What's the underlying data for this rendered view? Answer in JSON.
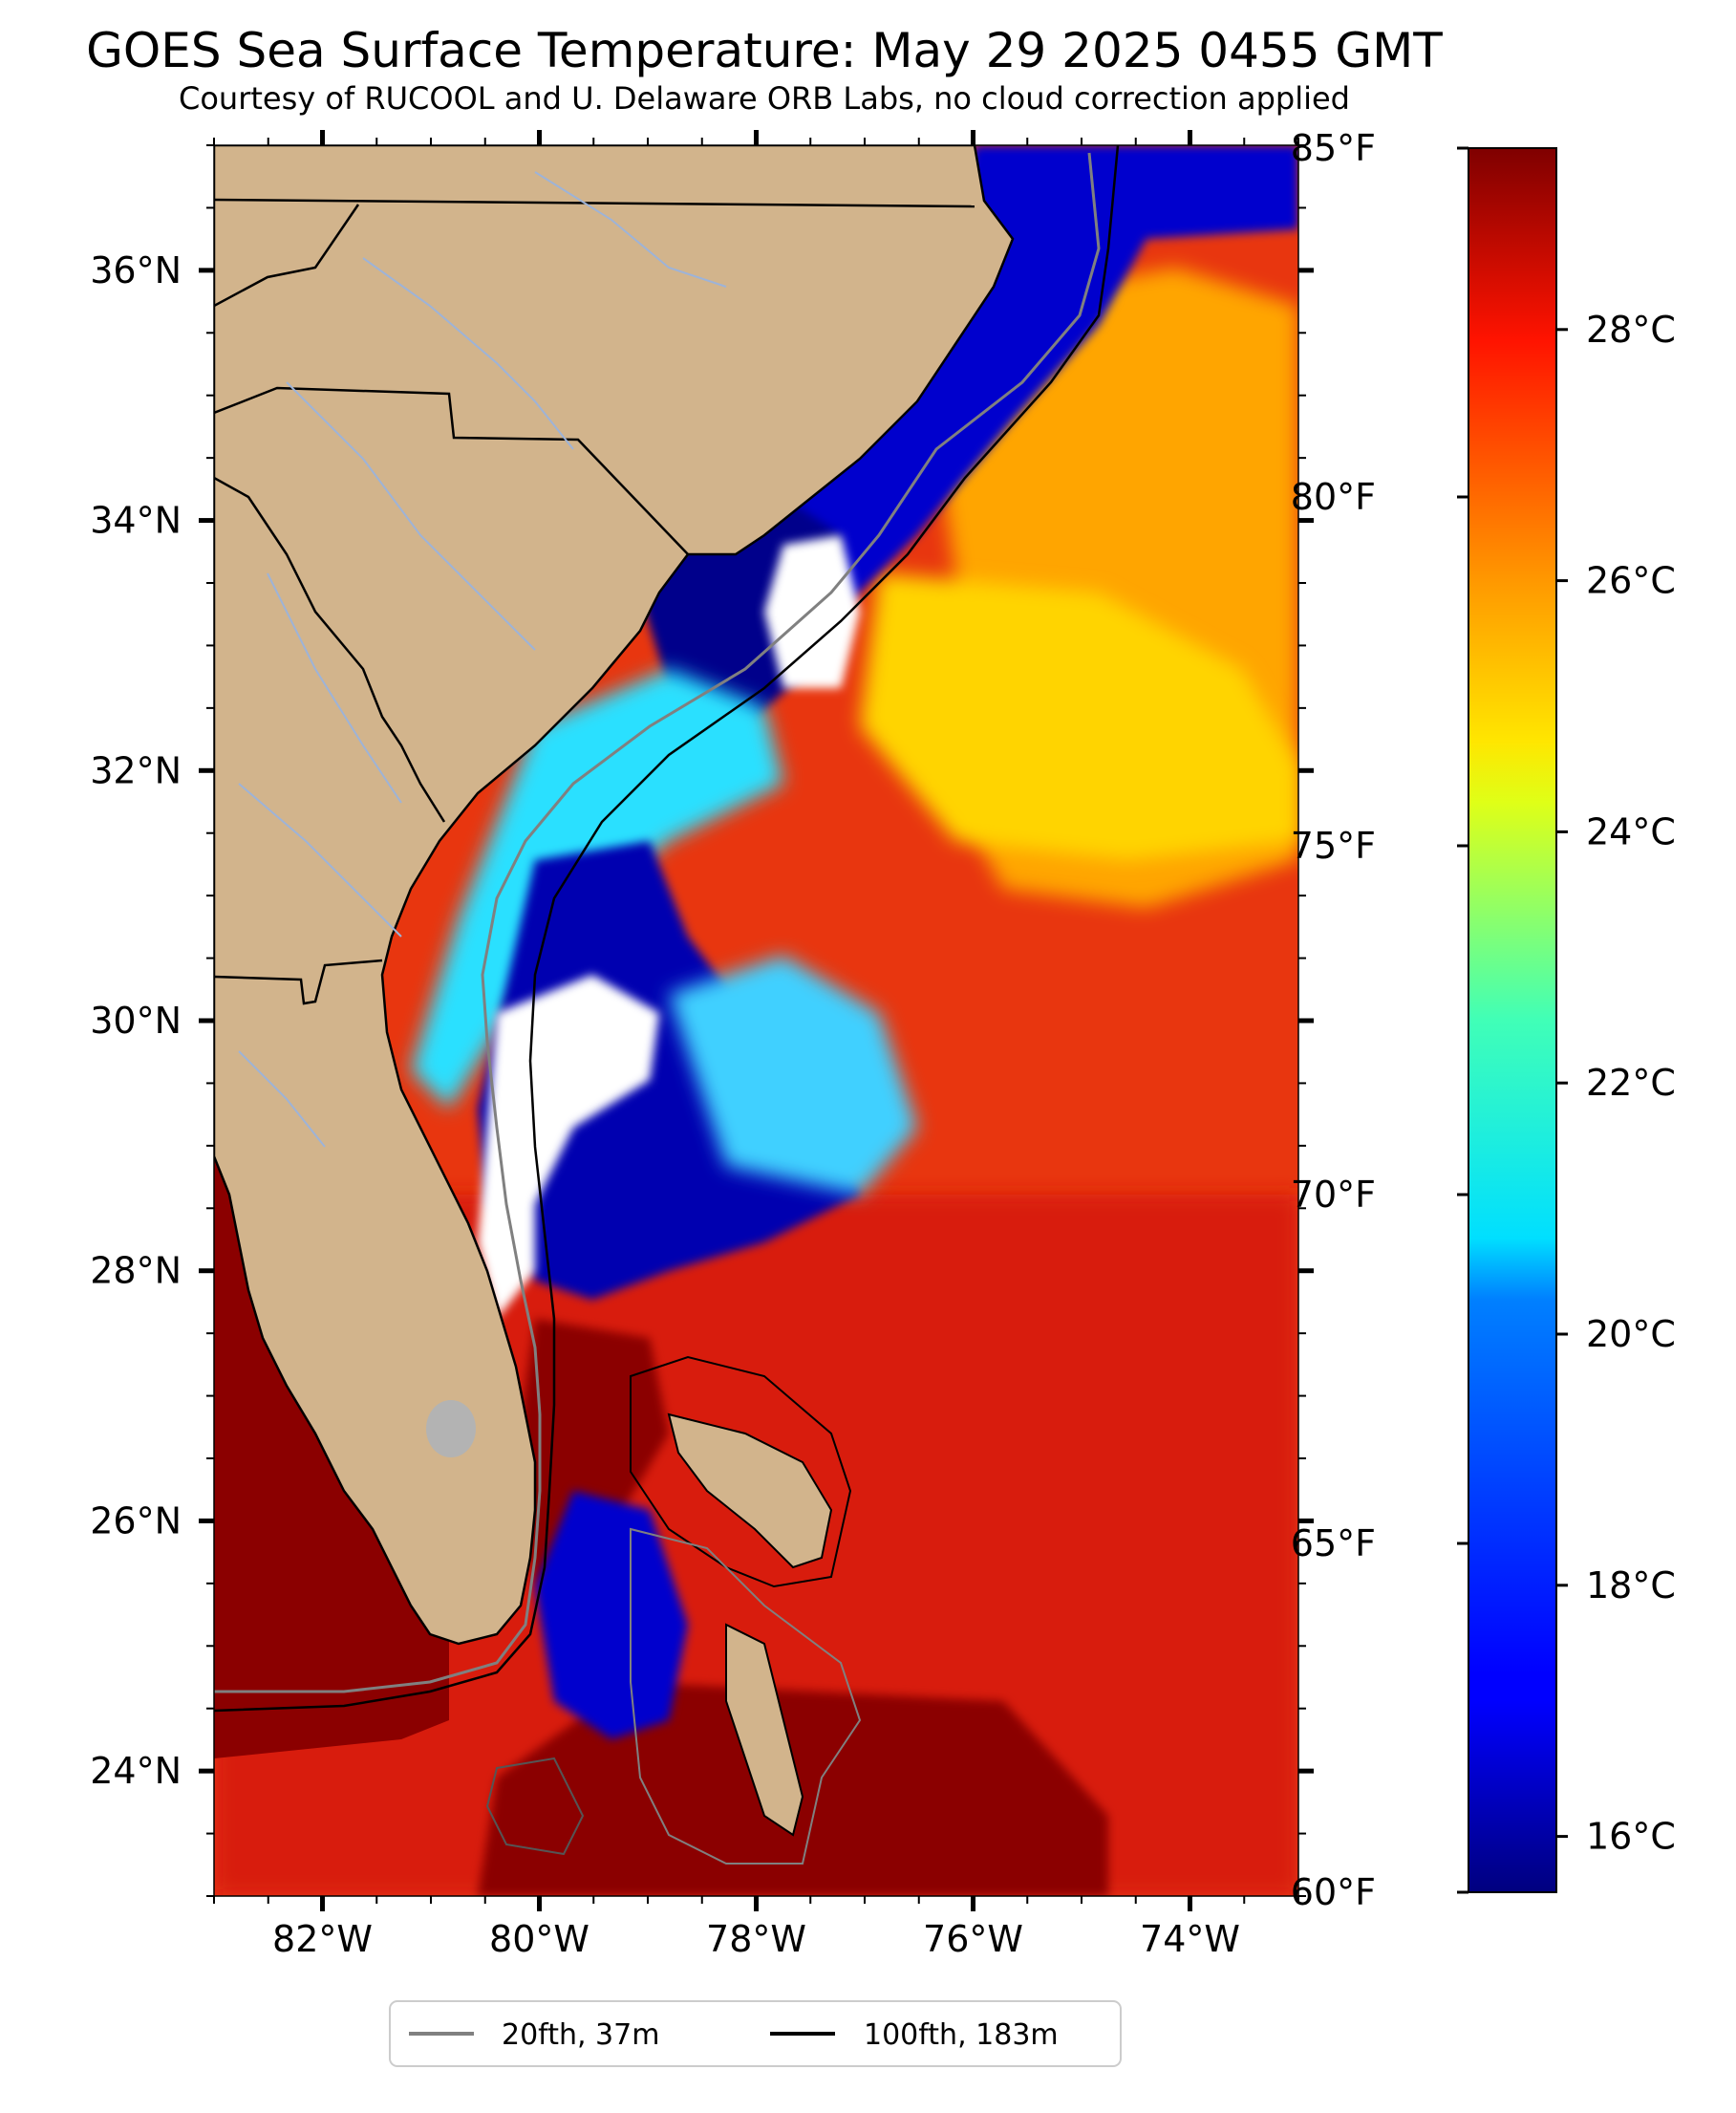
{
  "header": {
    "title": "GOES Sea Surface Temperature: May 29 2025 0455 GMT",
    "subtitle": "Courtesy of RUCOOL and U. Delaware ORB Labs, no cloud correction applied"
  },
  "map": {
    "lon_range": [
      -83.0,
      -73.0
    ],
    "lat_range": [
      23.0,
      37.0
    ],
    "lon_ticks": [
      {
        "value": -82,
        "label": "82°W"
      },
      {
        "value": -80,
        "label": "80°W"
      },
      {
        "value": -78,
        "label": "78°W"
      },
      {
        "value": -76,
        "label": "76°W"
      },
      {
        "value": -74,
        "label": "74°W"
      }
    ],
    "lat_ticks": [
      {
        "value": 36,
        "label": "36°N"
      },
      {
        "value": 34,
        "label": "34°N"
      },
      {
        "value": 32,
        "label": "32°N"
      },
      {
        "value": 30,
        "label": "30°N"
      },
      {
        "value": 28,
        "label": "28°N"
      },
      {
        "value": 26,
        "label": "26°N"
      },
      {
        "value": 24,
        "label": "24°N"
      }
    ],
    "colors": {
      "land": "#d2b48c",
      "warm_water": "#e8360f",
      "gulf_water": "#8b0000",
      "cold_water": "#00008b",
      "cloud": "#ffffff",
      "isobath_20": "#808080",
      "isobath_100": "#000000"
    }
  },
  "colorbar": {
    "celsius_ticks": [
      {
        "value": 16,
        "label": "16°C"
      },
      {
        "value": 18,
        "label": "18°C"
      },
      {
        "value": 20,
        "label": "20°C"
      },
      {
        "value": 22,
        "label": "22°C"
      },
      {
        "value": 24,
        "label": "24°C"
      },
      {
        "value": 26,
        "label": "26°C"
      },
      {
        "value": 28,
        "label": "28°C"
      }
    ],
    "fahrenheit_ticks": [
      {
        "value": 60,
        "label": "60°F"
      },
      {
        "value": 65,
        "label": "65°F"
      },
      {
        "value": 70,
        "label": "70°F"
      },
      {
        "value": 75,
        "label": "75°F"
      },
      {
        "value": 80,
        "label": "80°F"
      },
      {
        "value": 85,
        "label": "85°F"
      }
    ],
    "range_f": [
      60,
      85
    ],
    "colormap": "jet"
  },
  "legend": {
    "items": [
      {
        "label": "20fth, 37m",
        "color": "#808080"
      },
      {
        "label": "100fth, 183m",
        "color": "#000000"
      }
    ]
  }
}
